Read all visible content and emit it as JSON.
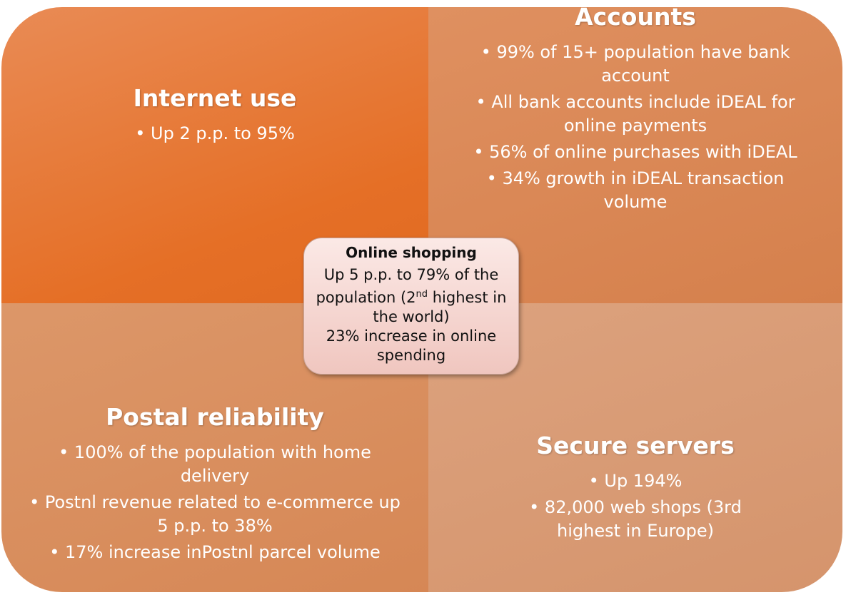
{
  "quadrants": [
    {
      "title": "Internet use",
      "bullets": [
        "Up 2 p.p. to 95%"
      ]
    },
    {
      "title": "Accounts",
      "bullets": [
        "99% of 15+ population have bank account",
        "All bank accounts include iDEAL for online payments",
        "56% of online purchases with iDEAL",
        "34% growth in iDEAL transaction volume"
      ]
    },
    {
      "title": "Postal reliability",
      "bullets": [
        "100% of the population with home delivery",
        "Postnl revenue related to e-commerce up 5 p.p. to 38%",
        "17%  increase inPostnl parcel volume"
      ]
    },
    {
      "title": "Secure servers",
      "bullets": [
        "Up 194%",
        "82,000 web shops (3rd highest in Europe)"
      ]
    }
  ],
  "center": {
    "title": "Online shopping",
    "text_before": "Up 5 p.p. to 79% of the population (2",
    "superscript": "nd",
    "text_after": " highest in the world)",
    "line2": "23% increase in online spending"
  }
}
